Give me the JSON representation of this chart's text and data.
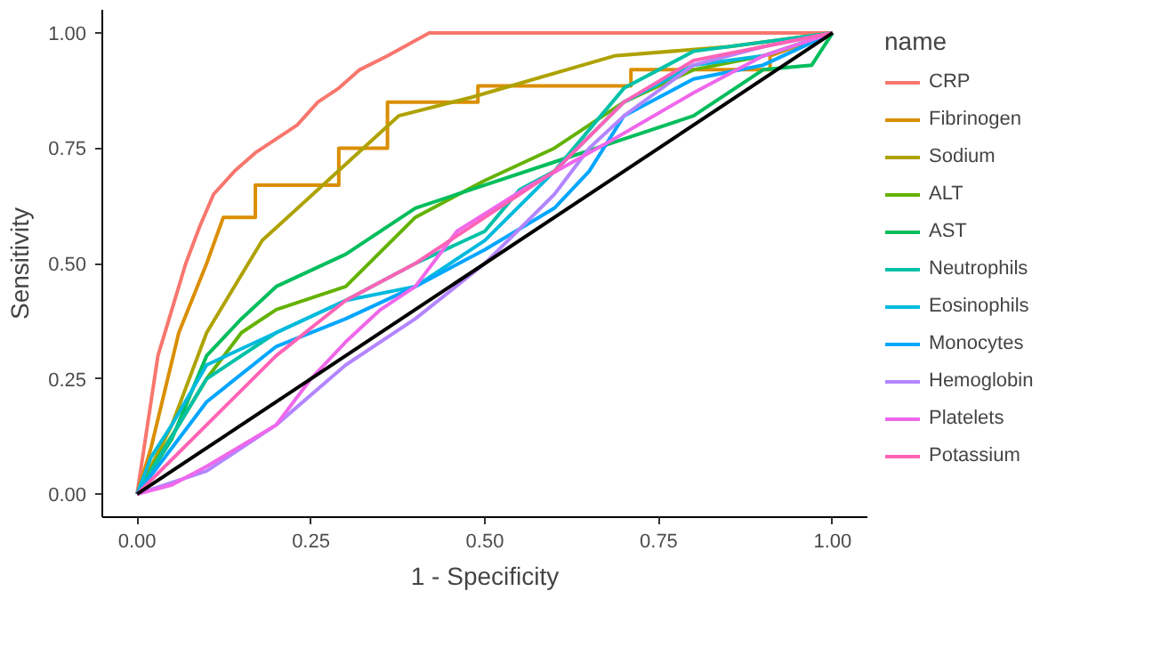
{
  "chart_data": {
    "type": "line",
    "xlabel": "1 - Specificity",
    "ylabel": "Sensitivity",
    "legend_title": "name",
    "legend": "right",
    "grid": false,
    "xlim": [
      -0.05,
      1.05
    ],
    "ylim": [
      -0.05,
      1.05
    ],
    "xticks": [
      {
        "value": 0,
        "label": "0.00"
      },
      {
        "value": 0.25,
        "label": "0.25"
      },
      {
        "value": 0.5,
        "label": "0.50"
      },
      {
        "value": 0.75,
        "label": "0.75"
      },
      {
        "value": 1,
        "label": "1.00"
      }
    ],
    "yticks": [
      {
        "value": 0,
        "label": "0.00"
      },
      {
        "value": 0.25,
        "label": "0.25"
      },
      {
        "value": 0.5,
        "label": "0.50"
      },
      {
        "value": 0.75,
        "label": "0.75"
      },
      {
        "value": 1,
        "label": "1.00"
      }
    ],
    "series": [
      {
        "name": "CRP",
        "color": "#f8766d",
        "x": [
          0,
          0.01,
          0.02,
          0.03,
          0.05,
          0.07,
          0.09,
          0.11,
          0.14,
          0.17,
          0.2,
          0.23,
          0.26,
          0.29,
          0.32,
          0.36,
          0.42,
          1
        ],
        "values": [
          0,
          0.1,
          0.2,
          0.3,
          0.4,
          0.5,
          0.58,
          0.65,
          0.7,
          0.74,
          0.77,
          0.8,
          0.85,
          0.88,
          0.92,
          0.95,
          1,
          1
        ]
      },
      {
        "name": "Fibrinogen",
        "color": "#db8e00",
        "x": [
          0,
          0.02,
          0.06,
          0.1,
          0.124,
          0.17,
          0.17,
          0.29,
          0.29,
          0.36,
          0.36,
          0.49,
          0.49,
          0.71,
          0.71,
          0.91,
          0.91,
          1
        ],
        "values": [
          0,
          0.1,
          0.35,
          0.5,
          0.6,
          0.6,
          0.67,
          0.67,
          0.75,
          0.75,
          0.85,
          0.85,
          0.885,
          0.885,
          0.92,
          0.92,
          0.95,
          1
        ]
      },
      {
        "name": "Sodium",
        "color": "#aea200",
        "x": [
          0,
          0.05,
          0.1,
          0.18,
          0.376,
          0.48,
          0.686,
          0.85,
          1
        ],
        "values": [
          0,
          0.15,
          0.35,
          0.55,
          0.82,
          0.86,
          0.95,
          0.97,
          1
        ]
      },
      {
        "name": "ALT",
        "color": "#64b200",
        "x": [
          0,
          0.03,
          0.06,
          0.1,
          0.15,
          0.2,
          0.3,
          0.4,
          0.5,
          0.6,
          0.7,
          0.8,
          0.9,
          1
        ],
        "values": [
          0,
          0.08,
          0.15,
          0.25,
          0.35,
          0.4,
          0.45,
          0.6,
          0.68,
          0.75,
          0.85,
          0.92,
          0.95,
          1
        ]
      },
      {
        "name": "AST",
        "color": "#00bd5c",
        "x": [
          0,
          0.05,
          0.1,
          0.15,
          0.2,
          0.3,
          0.4,
          0.5,
          0.6,
          0.7,
          0.8,
          0.9,
          0.97,
          1
        ],
        "values": [
          0,
          0.12,
          0.3,
          0.38,
          0.45,
          0.52,
          0.62,
          0.67,
          0.72,
          0.77,
          0.82,
          0.92,
          0.93,
          1
        ]
      },
      {
        "name": "Neutrophils",
        "color": "#00c1a7",
        "x": [
          0,
          0.1,
          0.2,
          0.3,
          0.4,
          0.5,
          0.55,
          0.6,
          0.7,
          0.8,
          1
        ],
        "values": [
          0,
          0.25,
          0.35,
          0.42,
          0.5,
          0.57,
          0.66,
          0.7,
          0.88,
          0.96,
          1
        ]
      },
      {
        "name": "Eosinophils",
        "color": "#00bade",
        "x": [
          0,
          0.02,
          0.05,
          0.1,
          0.2,
          0.3,
          0.4,
          0.5,
          0.6,
          0.7,
          0.8,
          0.9,
          1
        ],
        "values": [
          0,
          0.08,
          0.15,
          0.28,
          0.35,
          0.42,
          0.45,
          0.55,
          0.7,
          0.85,
          0.93,
          0.95,
          1
        ]
      },
      {
        "name": "Monocytes",
        "color": "#00a6ff",
        "x": [
          0,
          0.05,
          0.1,
          0.2,
          0.3,
          0.4,
          0.5,
          0.6,
          0.65,
          0.7,
          0.8,
          0.9,
          1
        ],
        "values": [
          0,
          0.1,
          0.2,
          0.32,
          0.38,
          0.45,
          0.53,
          0.62,
          0.7,
          0.82,
          0.9,
          0.93,
          1
        ]
      },
      {
        "name": "Hemoglobin",
        "color": "#b385ff",
        "x": [
          0,
          0.1,
          0.2,
          0.3,
          0.4,
          0.5,
          0.6,
          0.65,
          0.7,
          0.8,
          0.9,
          1
        ],
        "values": [
          0,
          0.05,
          0.15,
          0.28,
          0.38,
          0.5,
          0.65,
          0.75,
          0.82,
          0.93,
          0.97,
          1
        ]
      },
      {
        "name": "Platelets",
        "color": "#ef67eb",
        "x": [
          0,
          0.05,
          0.1,
          0.2,
          0.25,
          0.3,
          0.35,
          0.4,
          0.46,
          0.555,
          0.686,
          0.8,
          0.9,
          1
        ],
        "values": [
          0,
          0.02,
          0.06,
          0.15,
          0.25,
          0.33,
          0.4,
          0.45,
          0.57,
          0.66,
          0.77,
          0.87,
          0.95,
          1
        ]
      },
      {
        "name": "Potassium",
        "color": "#ff63b6",
        "x": [
          0,
          0.1,
          0.2,
          0.3,
          0.4,
          0.5,
          0.6,
          0.7,
          0.8,
          0.9,
          1
        ],
        "values": [
          0,
          0.15,
          0.3,
          0.42,
          0.5,
          0.6,
          0.7,
          0.85,
          0.94,
          0.97,
          1
        ]
      },
      {
        "color": "#000000",
        "x": [
          0,
          1
        ],
        "values": [
          0,
          1
        ]
      }
    ]
  }
}
